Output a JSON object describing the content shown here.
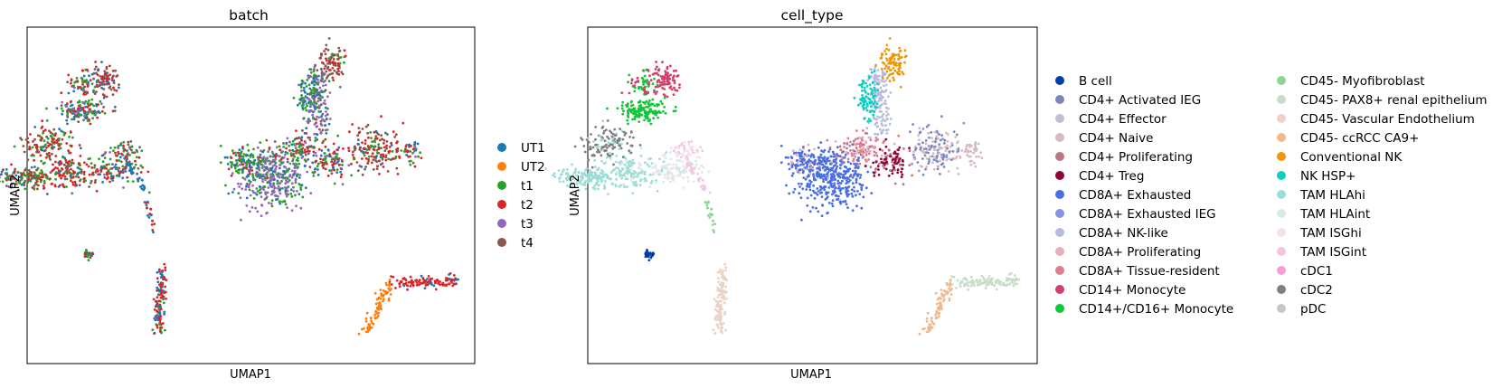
{
  "chart_data": [
    {
      "type": "scatter",
      "title": "batch",
      "xlabel": "UMAP1",
      "ylabel": "UMAP2",
      "grid": false,
      "legend": "right",
      "series": [
        {
          "name": "UT1",
          "color": "#1f77b4"
        },
        {
          "name": "UT2",
          "color": "#ff7f0e"
        },
        {
          "name": "t1",
          "color": "#2ca02c"
        },
        {
          "name": "t2",
          "color": "#d62728"
        },
        {
          "name": "t3",
          "color": "#9467bd"
        },
        {
          "name": "t4",
          "color": "#8c564b"
        }
      ]
    },
    {
      "type": "scatter",
      "title": "cell_type",
      "xlabel": "UMAP1",
      "ylabel": "UMAP2",
      "grid": false,
      "legend": "right",
      "series": [
        {
          "name": "B cell",
          "color": "#023fa5"
        },
        {
          "name": "CD4+ Activated IEG",
          "color": "#7d87b9"
        },
        {
          "name": "CD4+ Effector",
          "color": "#bec1d4"
        },
        {
          "name": "CD4+ Naive",
          "color": "#d6bcc0"
        },
        {
          "name": "CD4+ Proliferating",
          "color": "#bb7784"
        },
        {
          "name": "CD4+ Treg",
          "color": "#8e063b"
        },
        {
          "name": "CD8A+ Exhausted",
          "color": "#4a6fe3"
        },
        {
          "name": "CD8A+ Exhausted IEG",
          "color": "#8595e1"
        },
        {
          "name": "CD8A+ NK-like",
          "color": "#b5bbe3"
        },
        {
          "name": "CD8A+ Proliferating",
          "color": "#e6afb9"
        },
        {
          "name": "CD8A+ Tissue-resident",
          "color": "#e07b91"
        },
        {
          "name": "CD14+ Monocyte",
          "color": "#d33f6a"
        },
        {
          "name": "CD14+/CD16+ Monocyte",
          "color": "#11c638"
        },
        {
          "name": "CD45- Myofibroblast",
          "color": "#8dd593"
        },
        {
          "name": "CD45- PAX8+ renal epithelium",
          "color": "#c6dec7"
        },
        {
          "name": "CD45- Vascular Endothelium",
          "color": "#ead3c6"
        },
        {
          "name": "CD45- ccRCC CA9+",
          "color": "#f0b98d"
        },
        {
          "name": "Conventional NK",
          "color": "#ef9708"
        },
        {
          "name": "NK HSP+",
          "color": "#0fcfc0"
        },
        {
          "name": "TAM HLAhi",
          "color": "#9cded6"
        },
        {
          "name": "TAM HLAint",
          "color": "#d5eae7"
        },
        {
          "name": "TAM ISGhi",
          "color": "#f3e1eb"
        },
        {
          "name": "TAM ISGint",
          "color": "#f6c4e1"
        },
        {
          "name": "cDC1",
          "color": "#f79cd4"
        },
        {
          "name": "cDC2",
          "color": "#7f7f7f"
        },
        {
          "name": "pDC",
          "color": "#c7c7c7"
        }
      ]
    }
  ]
}
